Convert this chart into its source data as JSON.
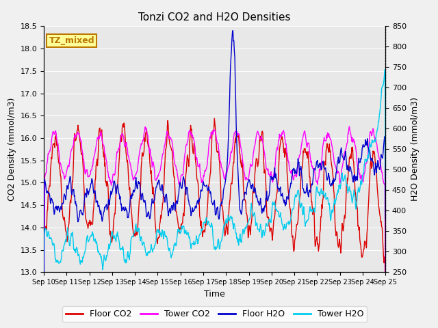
{
  "title": "Tonzi CO2 and H2O Densities",
  "xlabel": "Time",
  "ylabel_left": "CO2 Density (mmol/m3)",
  "ylabel_right": "H2O Density (mmol/m3)",
  "annotation_text": "TZ_mixed",
  "annotation_color": "#bb7700",
  "annotation_bg": "#ffff99",
  "ylim_left": [
    13.0,
    18.5
  ],
  "ylim_right": [
    250,
    850
  ],
  "yticks_left": [
    13.0,
    13.5,
    14.0,
    14.5,
    15.0,
    15.5,
    16.0,
    16.5,
    17.0,
    17.5,
    18.0,
    18.5
  ],
  "yticks_right": [
    250,
    300,
    350,
    400,
    450,
    500,
    550,
    600,
    650,
    700,
    750,
    800,
    850
  ],
  "xtick_labels": [
    "Sep 10",
    "Sep 11",
    "Sep 12",
    "Sep 13",
    "Sep 14",
    "Sep 15",
    "Sep 16",
    "Sep 17",
    "Sep 18",
    "Sep 19",
    "Sep 20",
    "Sep 21",
    "Sep 22",
    "Sep 23",
    "Sep 24",
    "Sep 25"
  ],
  "n_days": 15,
  "points_per_day": 48,
  "colors": {
    "floor_co2": "#dd0000",
    "tower_co2": "#ff00ff",
    "floor_h2o": "#0000cc",
    "tower_h2o": "#00ccee"
  },
  "legend_labels": [
    "Floor CO2",
    "Tower CO2",
    "Floor H2O",
    "Tower H2O"
  ],
  "background_color": "#f0f0f0",
  "plot_bg": "#e8e8e8",
  "grid_color": "#ffffff",
  "linewidth": 1.0,
  "title_fontsize": 11,
  "label_fontsize": 9,
  "tick_fontsize": 8,
  "xtick_fontsize": 7
}
